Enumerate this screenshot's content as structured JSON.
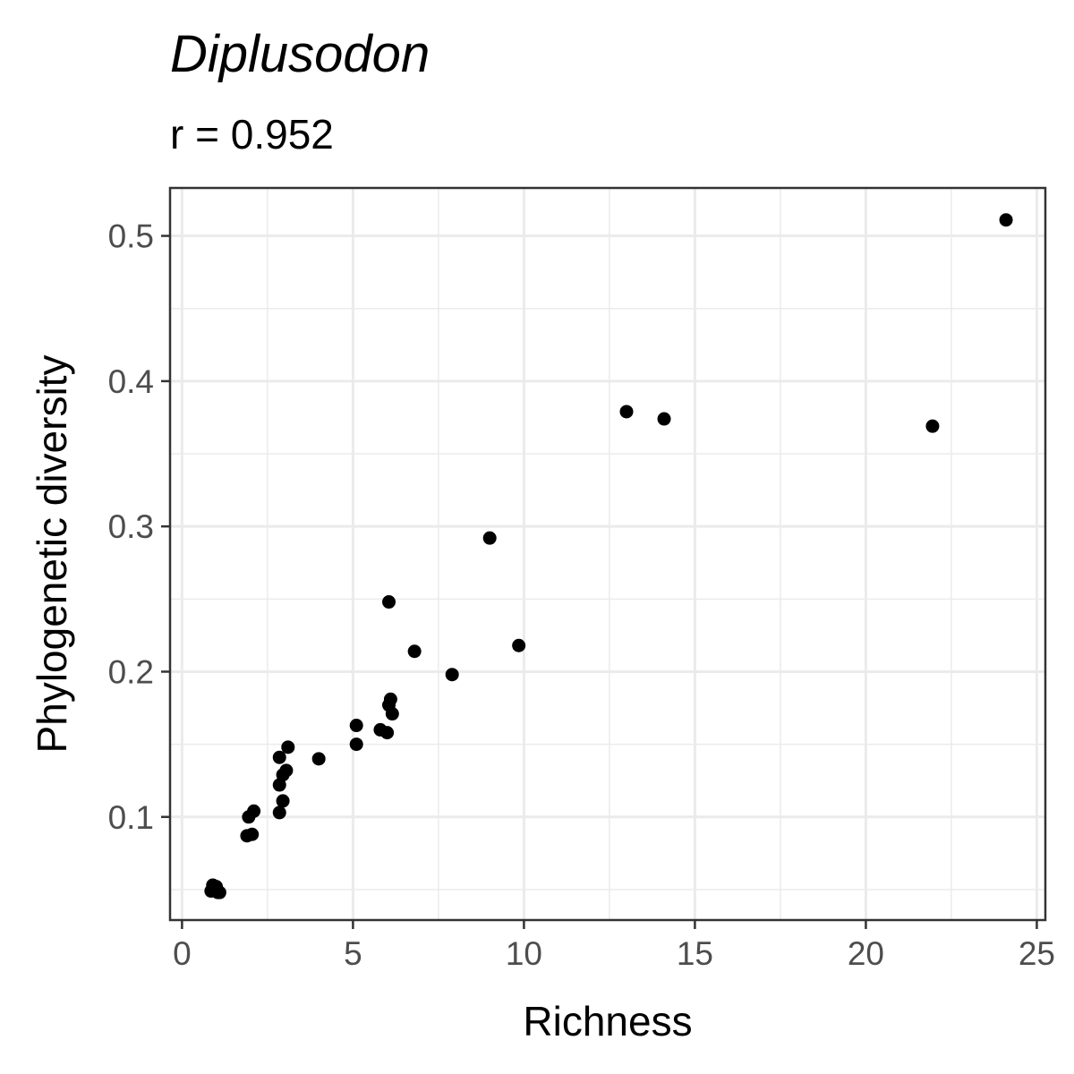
{
  "chart_data": {
    "type": "scatter",
    "title": "Diplusodon",
    "subtitle": "r = 0.952",
    "xlabel": "Richness",
    "ylabel": "Phylogenetic diversity",
    "xlim": [
      -0.35,
      25.25
    ],
    "ylim": [
      0.029,
      0.533
    ],
    "xticks": [
      0,
      5,
      10,
      15,
      20,
      25
    ],
    "xtick_labels": [
      "0",
      "5",
      "10",
      "15",
      "20",
      "25"
    ],
    "yticks": [
      0.1,
      0.2,
      0.3,
      0.4,
      0.5
    ],
    "ytick_labels": [
      "0.1",
      "0.2",
      "0.3",
      "0.4",
      "0.5"
    ],
    "grid": true,
    "legend": "none",
    "point_color": "#000000",
    "points": [
      {
        "x": 24.1,
        "y": 0.511
      },
      {
        "x": 13.0,
        "y": 0.379
      },
      {
        "x": 14.1,
        "y": 0.374
      },
      {
        "x": 21.95,
        "y": 0.369
      },
      {
        "x": 9.0,
        "y": 0.292
      },
      {
        "x": 6.05,
        "y": 0.248
      },
      {
        "x": 9.85,
        "y": 0.218
      },
      {
        "x": 6.8,
        "y": 0.214
      },
      {
        "x": 7.9,
        "y": 0.198
      },
      {
        "x": 6.1,
        "y": 0.181
      },
      {
        "x": 6.05,
        "y": 0.177
      },
      {
        "x": 6.15,
        "y": 0.171
      },
      {
        "x": 5.1,
        "y": 0.163
      },
      {
        "x": 5.8,
        "y": 0.16
      },
      {
        "x": 6.0,
        "y": 0.158
      },
      {
        "x": 5.1,
        "y": 0.15
      },
      {
        "x": 3.1,
        "y": 0.148
      },
      {
        "x": 2.85,
        "y": 0.141
      },
      {
        "x": 4.0,
        "y": 0.14
      },
      {
        "x": 3.05,
        "y": 0.132
      },
      {
        "x": 2.95,
        "y": 0.129
      },
      {
        "x": 2.85,
        "y": 0.122
      },
      {
        "x": 2.95,
        "y": 0.111
      },
      {
        "x": 2.1,
        "y": 0.104
      },
      {
        "x": 2.85,
        "y": 0.103
      },
      {
        "x": 1.95,
        "y": 0.1
      },
      {
        "x": 2.05,
        "y": 0.088
      },
      {
        "x": 1.9,
        "y": 0.087
      },
      {
        "x": 0.9,
        "y": 0.053
      },
      {
        "x": 1.0,
        "y": 0.052
      },
      {
        "x": 0.85,
        "y": 0.049
      },
      {
        "x": 1.05,
        "y": 0.048
      },
      {
        "x": 1.1,
        "y": 0.048
      }
    ]
  }
}
